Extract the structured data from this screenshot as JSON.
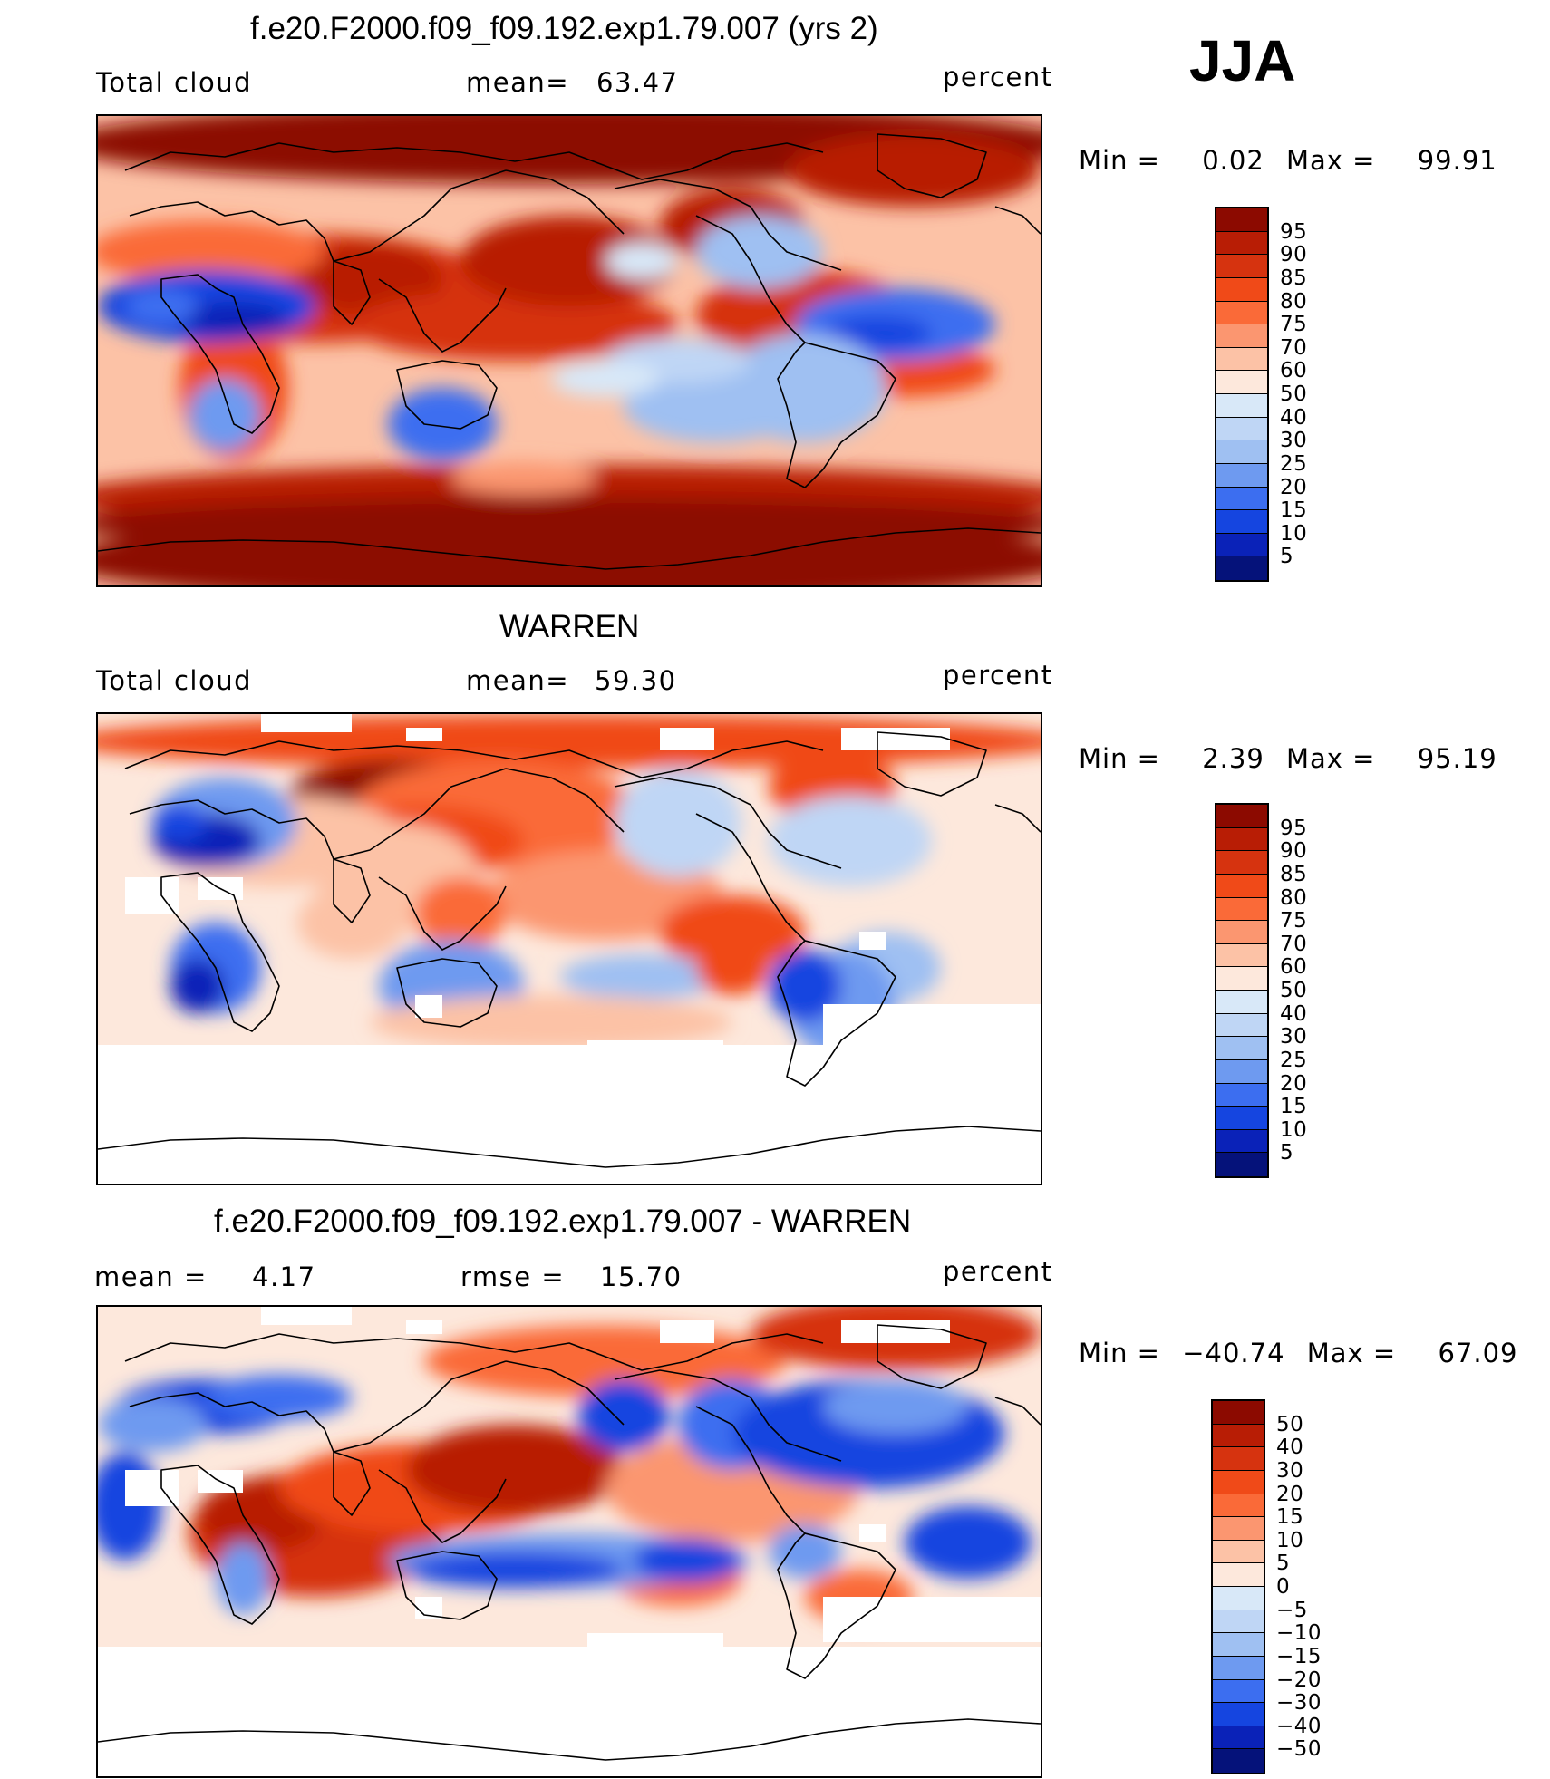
{
  "season_label": "JJA",
  "units": "percent",
  "panels": [
    {
      "title": "f.e20.F2000.f09_f09.192.exp1.79.007 (yrs 2)",
      "left_label": "Total cloud",
      "stat_label": "mean=",
      "stat_value": "63.47",
      "min_label": "Min =",
      "min_value": "0.02",
      "max_label": "Max =",
      "max_value": "99.91",
      "scale": "cloud"
    },
    {
      "title": "WARREN",
      "left_label": "Total cloud",
      "stat_label": "mean=",
      "stat_value": "59.30",
      "min_label": "Min =",
      "min_value": "2.39",
      "max_label": "Max =",
      "max_value": "95.19",
      "scale": "cloud"
    },
    {
      "title": "f.e20.F2000.f09_f09.192.exp1.79.007 - WARREN",
      "left_label": "mean =",
      "left_value": "4.17",
      "stat_label": "rmse =",
      "stat_value": "15.70",
      "min_label": "Min =",
      "min_value": "−40.74",
      "max_label": "Max =",
      "max_value": "67.09",
      "scale": "diff"
    }
  ],
  "colorbars": {
    "cloud": {
      "labels": [
        "95",
        "90",
        "85",
        "80",
        "75",
        "70",
        "60",
        "50",
        "40",
        "30",
        "25",
        "20",
        "15",
        "10",
        "5"
      ],
      "colors": [
        "#8c0a00",
        "#b81d05",
        "#d6330f",
        "#f04a18",
        "#fa6a38",
        "#fb9670",
        "#fcc2a6",
        "#fde8dc",
        "#d8e8f8",
        "#bfd6f5",
        "#9fc0f2",
        "#6e9af0",
        "#3c6ef0",
        "#1545e0",
        "#0a22b8",
        "#05127a"
      ]
    },
    "diff": {
      "labels": [
        "50",
        "40",
        "30",
        "20",
        "15",
        "10",
        "5",
        "0",
        "−5",
        "−10",
        "−15",
        "−20",
        "−30",
        "−40",
        "−50"
      ],
      "colors": [
        "#8c0a00",
        "#b81d05",
        "#d6330f",
        "#f04a18",
        "#fa6a38",
        "#fb9670",
        "#fcc2a6",
        "#fde8dc",
        "#d8e8f8",
        "#bfd6f5",
        "#9fc0f2",
        "#6e9af0",
        "#3c6ef0",
        "#1545e0",
        "#0a22b8",
        "#05127a"
      ]
    }
  }
}
